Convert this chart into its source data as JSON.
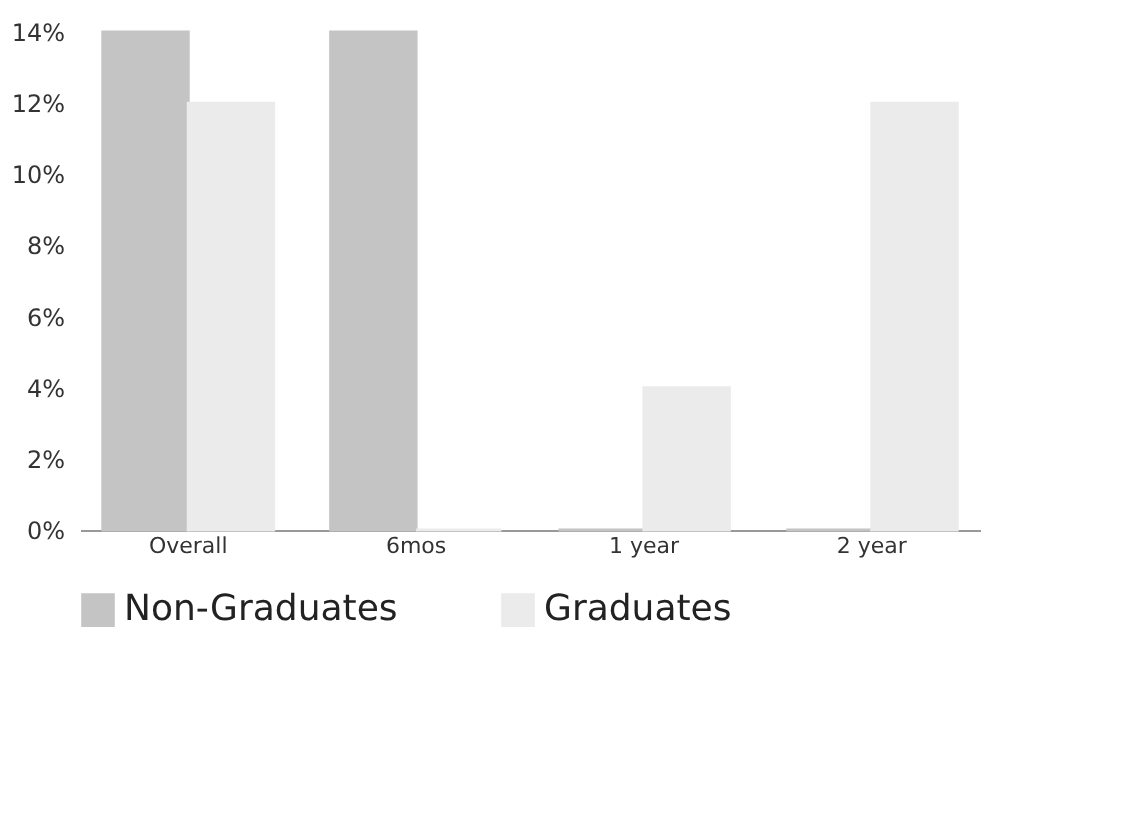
{
  "chart_data": {
    "type": "bar",
    "categories": [
      "Overall",
      "6mos",
      "1  year",
      "2 year"
    ],
    "series": [
      {
        "name": "Non-Graduates",
        "color": "#c4c4c4",
        "values": [
          14,
          14,
          0,
          0
        ]
      },
      {
        "name": "Graduates",
        "color": "#ebebeb",
        "values": [
          12,
          0,
          4,
          12
        ]
      }
    ],
    "ylim": [
      0,
      14
    ],
    "yticks": [
      {
        "value": 0,
        "label": "0%"
      },
      {
        "value": 2,
        "label": "2%"
      },
      {
        "value": 4,
        "label": "4%"
      },
      {
        "value": 6,
        "label": "6%"
      },
      {
        "value": 8,
        "label": "8%"
      },
      {
        "value": 10,
        "label": "10%"
      },
      {
        "value": 12,
        "label": "12%"
      },
      {
        "value": 14,
        "label": "14%"
      }
    ],
    "grid": false,
    "legend": "bottom"
  }
}
